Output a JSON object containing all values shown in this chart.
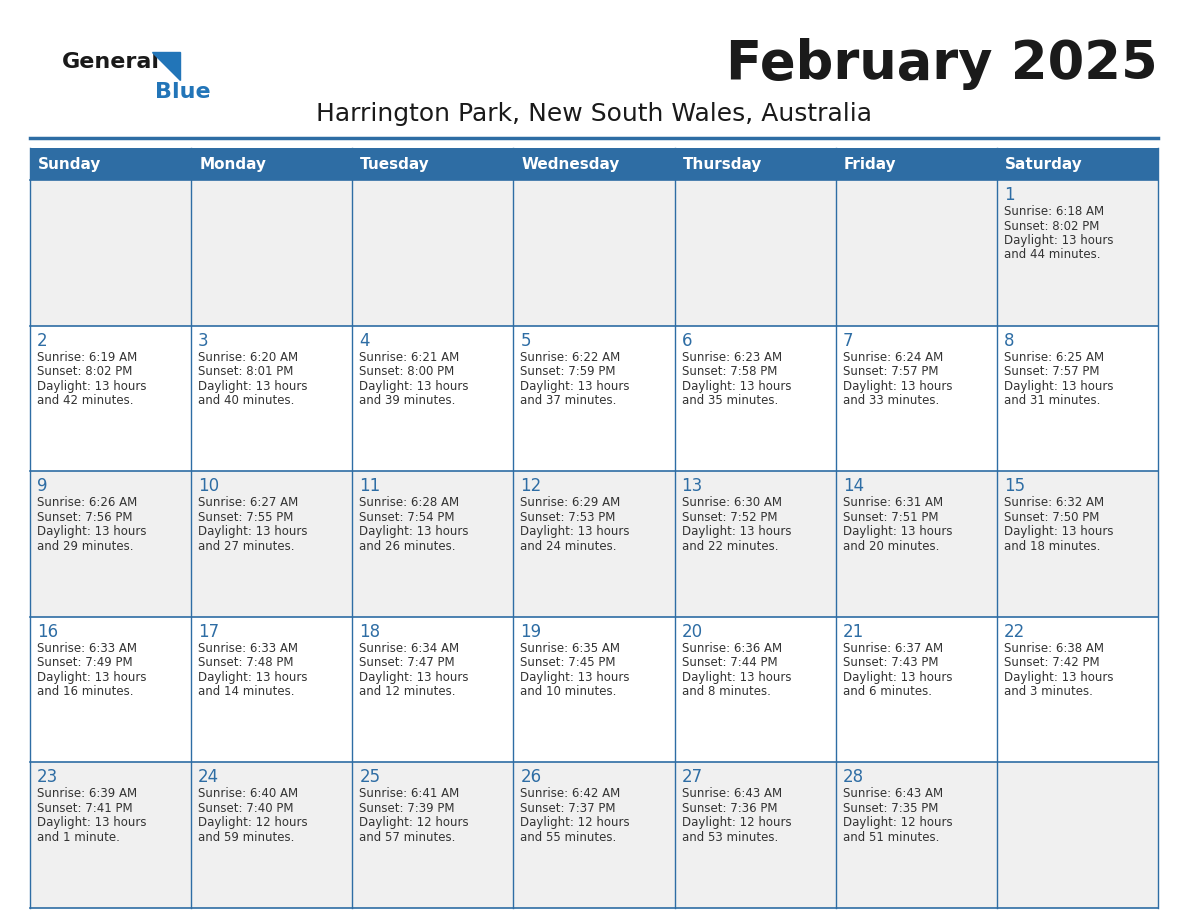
{
  "title": "February 2025",
  "subtitle": "Harrington Park, New South Wales, Australia",
  "header_bg": "#2E6DA4",
  "header_text": "#FFFFFF",
  "row_bg_odd": "#F0F0F0",
  "row_bg_even": "#FFFFFF",
  "border_color": "#2E6DA4",
  "day_headers": [
    "Sunday",
    "Monday",
    "Tuesday",
    "Wednesday",
    "Thursday",
    "Friday",
    "Saturday"
  ],
  "title_color": "#1a1a1a",
  "subtitle_color": "#1a1a1a",
  "day_num_color": "#2E6DA4",
  "cell_text_color": "#333333",
  "logo_general_color": "#1a1a1a",
  "logo_blue_color": "#2275b8",
  "weeks": [
    [
      {
        "day": "",
        "lines": []
      },
      {
        "day": "",
        "lines": []
      },
      {
        "day": "",
        "lines": []
      },
      {
        "day": "",
        "lines": []
      },
      {
        "day": "",
        "lines": []
      },
      {
        "day": "",
        "lines": []
      },
      {
        "day": "1",
        "lines": [
          "Sunrise: 6:18 AM",
          "Sunset: 8:02 PM",
          "Daylight: 13 hours",
          "and 44 minutes."
        ]
      }
    ],
    [
      {
        "day": "2",
        "lines": [
          "Sunrise: 6:19 AM",
          "Sunset: 8:02 PM",
          "Daylight: 13 hours",
          "and 42 minutes."
        ]
      },
      {
        "day": "3",
        "lines": [
          "Sunrise: 6:20 AM",
          "Sunset: 8:01 PM",
          "Daylight: 13 hours",
          "and 40 minutes."
        ]
      },
      {
        "day": "4",
        "lines": [
          "Sunrise: 6:21 AM",
          "Sunset: 8:00 PM",
          "Daylight: 13 hours",
          "and 39 minutes."
        ]
      },
      {
        "day": "5",
        "lines": [
          "Sunrise: 6:22 AM",
          "Sunset: 7:59 PM",
          "Daylight: 13 hours",
          "and 37 minutes."
        ]
      },
      {
        "day": "6",
        "lines": [
          "Sunrise: 6:23 AM",
          "Sunset: 7:58 PM",
          "Daylight: 13 hours",
          "and 35 minutes."
        ]
      },
      {
        "day": "7",
        "lines": [
          "Sunrise: 6:24 AM",
          "Sunset: 7:57 PM",
          "Daylight: 13 hours",
          "and 33 minutes."
        ]
      },
      {
        "day": "8",
        "lines": [
          "Sunrise: 6:25 AM",
          "Sunset: 7:57 PM",
          "Daylight: 13 hours",
          "and 31 minutes."
        ]
      }
    ],
    [
      {
        "day": "9",
        "lines": [
          "Sunrise: 6:26 AM",
          "Sunset: 7:56 PM",
          "Daylight: 13 hours",
          "and 29 minutes."
        ]
      },
      {
        "day": "10",
        "lines": [
          "Sunrise: 6:27 AM",
          "Sunset: 7:55 PM",
          "Daylight: 13 hours",
          "and 27 minutes."
        ]
      },
      {
        "day": "11",
        "lines": [
          "Sunrise: 6:28 AM",
          "Sunset: 7:54 PM",
          "Daylight: 13 hours",
          "and 26 minutes."
        ]
      },
      {
        "day": "12",
        "lines": [
          "Sunrise: 6:29 AM",
          "Sunset: 7:53 PM",
          "Daylight: 13 hours",
          "and 24 minutes."
        ]
      },
      {
        "day": "13",
        "lines": [
          "Sunrise: 6:30 AM",
          "Sunset: 7:52 PM",
          "Daylight: 13 hours",
          "and 22 minutes."
        ]
      },
      {
        "day": "14",
        "lines": [
          "Sunrise: 6:31 AM",
          "Sunset: 7:51 PM",
          "Daylight: 13 hours",
          "and 20 minutes."
        ]
      },
      {
        "day": "15",
        "lines": [
          "Sunrise: 6:32 AM",
          "Sunset: 7:50 PM",
          "Daylight: 13 hours",
          "and 18 minutes."
        ]
      }
    ],
    [
      {
        "day": "16",
        "lines": [
          "Sunrise: 6:33 AM",
          "Sunset: 7:49 PM",
          "Daylight: 13 hours",
          "and 16 minutes."
        ]
      },
      {
        "day": "17",
        "lines": [
          "Sunrise: 6:33 AM",
          "Sunset: 7:48 PM",
          "Daylight: 13 hours",
          "and 14 minutes."
        ]
      },
      {
        "day": "18",
        "lines": [
          "Sunrise: 6:34 AM",
          "Sunset: 7:47 PM",
          "Daylight: 13 hours",
          "and 12 minutes."
        ]
      },
      {
        "day": "19",
        "lines": [
          "Sunrise: 6:35 AM",
          "Sunset: 7:45 PM",
          "Daylight: 13 hours",
          "and 10 minutes."
        ]
      },
      {
        "day": "20",
        "lines": [
          "Sunrise: 6:36 AM",
          "Sunset: 7:44 PM",
          "Daylight: 13 hours",
          "and 8 minutes."
        ]
      },
      {
        "day": "21",
        "lines": [
          "Sunrise: 6:37 AM",
          "Sunset: 7:43 PM",
          "Daylight: 13 hours",
          "and 6 minutes."
        ]
      },
      {
        "day": "22",
        "lines": [
          "Sunrise: 6:38 AM",
          "Sunset: 7:42 PM",
          "Daylight: 13 hours",
          "and 3 minutes."
        ]
      }
    ],
    [
      {
        "day": "23",
        "lines": [
          "Sunrise: 6:39 AM",
          "Sunset: 7:41 PM",
          "Daylight: 13 hours",
          "and 1 minute."
        ]
      },
      {
        "day": "24",
        "lines": [
          "Sunrise: 6:40 AM",
          "Sunset: 7:40 PM",
          "Daylight: 12 hours",
          "and 59 minutes."
        ]
      },
      {
        "day": "25",
        "lines": [
          "Sunrise: 6:41 AM",
          "Sunset: 7:39 PM",
          "Daylight: 12 hours",
          "and 57 minutes."
        ]
      },
      {
        "day": "26",
        "lines": [
          "Sunrise: 6:42 AM",
          "Sunset: 7:37 PM",
          "Daylight: 12 hours",
          "and 55 minutes."
        ]
      },
      {
        "day": "27",
        "lines": [
          "Sunrise: 6:43 AM",
          "Sunset: 7:36 PM",
          "Daylight: 12 hours",
          "and 53 minutes."
        ]
      },
      {
        "day": "28",
        "lines": [
          "Sunrise: 6:43 AM",
          "Sunset: 7:35 PM",
          "Daylight: 12 hours",
          "and 51 minutes."
        ]
      },
      {
        "day": "",
        "lines": []
      }
    ]
  ]
}
